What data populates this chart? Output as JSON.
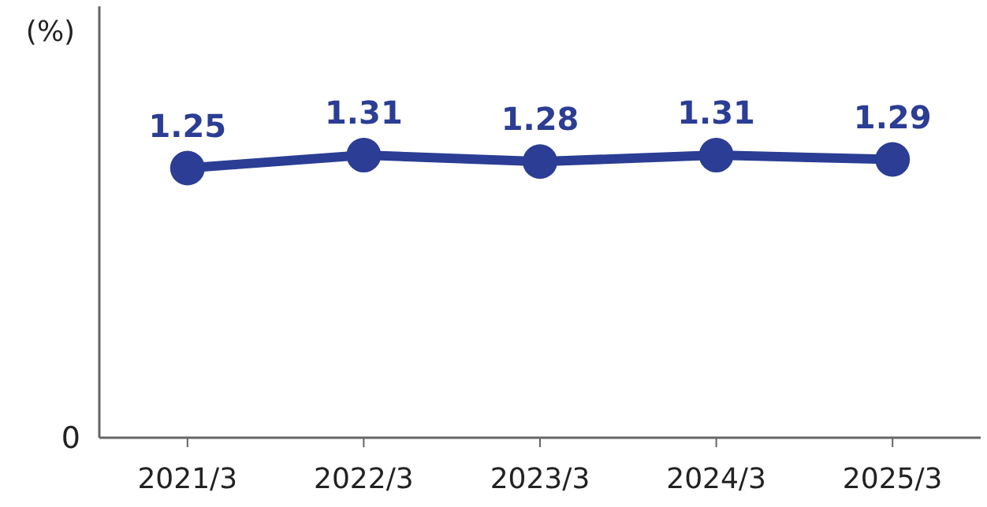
{
  "chart_data": {
    "type": "line",
    "ylabel": "(%)",
    "categories": [
      "2021/3",
      "2022/3",
      "2023/3",
      "2024/3",
      "2025/3"
    ],
    "series": [
      {
        "color": "#2b3d94",
        "values": [
          1.25,
          1.31,
          1.28,
          1.31,
          1.29
        ]
      }
    ],
    "ylim": [
      0,
      2
    ],
    "annotations": [
      "0"
    ],
    "data_labels": true,
    "marker": "circle",
    "line_style": "solid"
  }
}
